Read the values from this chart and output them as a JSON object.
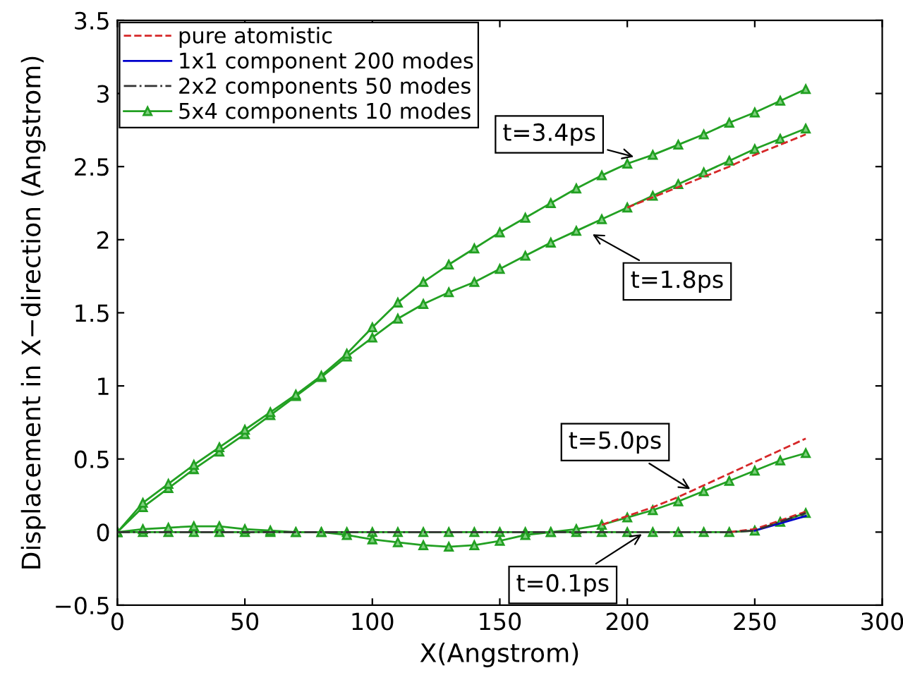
{
  "chart_data": {
    "type": "line",
    "xlabel": "X(Angstrom)",
    "ylabel": "Displacement in X−direction (Angstrom)",
    "x": [
      0,
      10,
      20,
      30,
      40,
      50,
      60,
      70,
      80,
      90,
      100,
      110,
      120,
      130,
      140,
      150,
      160,
      170,
      180,
      190,
      200,
      210,
      220,
      230,
      240,
      250,
      260,
      270
    ],
    "xlim": [
      0,
      300
    ],
    "xticks": [
      0,
      50,
      100,
      150,
      200,
      250,
      300
    ],
    "ylim": [
      -0.5,
      3.5
    ],
    "yticks": [
      {
        "value": -0.5,
        "label": "−0.5"
      },
      0,
      0.5,
      1,
      1.5,
      2,
      2.5,
      3,
      3.5
    ],
    "grid": false,
    "legend": "top left",
    "series": [
      {
        "name": "pure atomistic",
        "color": "#d62728",
        "line_style": "dashed",
        "marker": "none",
        "values": [
          null,
          null,
          null,
          null,
          null,
          null,
          null,
          null,
          null,
          null,
          null,
          null,
          null,
          null,
          null,
          null,
          null,
          null,
          null,
          null,
          null,
          null,
          null,
          null,
          0,
          0.02,
          0.08,
          0.14
        ]
      },
      {
        "name": "1x1 component 200 modes",
        "color": "#0000cc",
        "line_style": "solid",
        "marker": "none",
        "values": [
          null,
          null,
          null,
          null,
          null,
          null,
          null,
          null,
          null,
          null,
          null,
          null,
          null,
          null,
          null,
          null,
          null,
          null,
          null,
          null,
          null,
          null,
          null,
          null,
          null,
          0.01,
          0.06,
          0.11
        ]
      },
      {
        "name": "2x2 components 50 modes",
        "color": "#333333",
        "line_style": "dashdot",
        "marker": "none",
        "values": [
          0,
          0,
          0,
          0,
          0,
          0,
          0,
          0,
          0,
          0,
          0,
          0,
          0,
          0,
          0,
          0,
          0,
          0,
          0,
          0,
          0,
          0,
          0,
          0,
          0,
          0.01,
          0.07,
          0.13
        ]
      },
      {
        "name": "5x4 components 10 modes",
        "color": "#22a022",
        "line_style": "solid",
        "marker": "triangle",
        "values": [
          0,
          0,
          0,
          0,
          0,
          0,
          0,
          0,
          0,
          0,
          0,
          0,
          0,
          0,
          0,
          0,
          0,
          0,
          0,
          0,
          0,
          0,
          0,
          0,
          0,
          0.01,
          0.07,
          0.13
        ]
      },
      {
        "color": "#d62728",
        "line_style": "dashed",
        "marker": "none",
        "values": [
          null,
          null,
          null,
          null,
          null,
          null,
          null,
          null,
          null,
          null,
          null,
          null,
          null,
          null,
          null,
          null,
          null,
          null,
          null,
          0.05,
          0.11,
          0.17,
          0.24,
          0.32,
          0.4,
          0.48,
          0.56,
          0.64
        ]
      },
      {
        "color": "#22a022",
        "line_style": "solid",
        "marker": "triangle",
        "values": [
          0,
          0.02,
          0.03,
          0.04,
          0.04,
          0.02,
          0.01,
          0,
          0,
          -0.02,
          -0.05,
          -0.07,
          -0.09,
          -0.1,
          -0.09,
          -0.06,
          -0.02,
          0,
          0.02,
          0.05,
          0.1,
          0.15,
          0.21,
          0.28,
          0.35,
          0.42,
          0.49,
          0.54
        ]
      },
      {
        "color": "#d62728",
        "line_style": "dashed",
        "marker": "none",
        "values": [
          null,
          null,
          null,
          null,
          null,
          null,
          null,
          null,
          null,
          null,
          null,
          null,
          null,
          null,
          null,
          null,
          null,
          null,
          null,
          null,
          2.22,
          2.29,
          2.36,
          2.43,
          2.5,
          2.58,
          2.65,
          2.72
        ]
      },
      {
        "color": "#22a022",
        "line_style": "solid",
        "marker": "triangle",
        "values": [
          0,
          0.17,
          0.3,
          0.43,
          0.55,
          0.67,
          0.8,
          0.93,
          1.06,
          1.2,
          1.33,
          1.46,
          1.56,
          1.64,
          1.71,
          1.8,
          1.89,
          1.98,
          2.06,
          2.14,
          2.22,
          2.3,
          2.38,
          2.46,
          2.54,
          2.62,
          2.69,
          2.76
        ]
      },
      {
        "color": "#22a022",
        "line_style": "solid",
        "marker": "triangle",
        "values": [
          0,
          0.2,
          0.33,
          0.46,
          0.58,
          0.7,
          0.82,
          0.94,
          1.07,
          1.22,
          1.4,
          1.57,
          1.71,
          1.83,
          1.94,
          2.05,
          2.15,
          2.25,
          2.35,
          2.44,
          2.52,
          2.58,
          2.65,
          2.72,
          2.8,
          2.87,
          2.95,
          3.03
        ]
      }
    ],
    "annotations": [
      {
        "text": "t=3.4ps",
        "x": 204,
        "y": 2.56
      },
      {
        "text": "t=1.8ps",
        "x": 185,
        "y": 2.05
      },
      {
        "text": "t=5.0ps",
        "x": 226,
        "y": 0.28
      },
      {
        "text": "t=0.1ps",
        "x": 207,
        "y": 0
      }
    ]
  }
}
